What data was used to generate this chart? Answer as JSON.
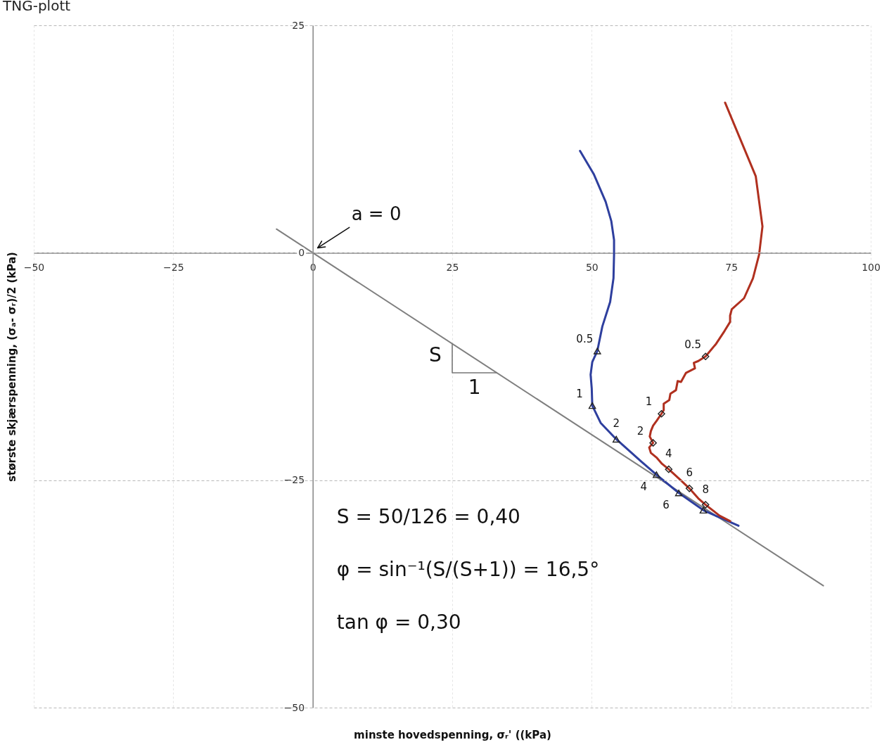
{
  "chart_data": {
    "type": "line",
    "title": "TNG-plott",
    "xlabel": "minste hovedspenning, σᵣ' ((kPa)",
    "ylabel": "største skjærspenning, (σₐ- σᵣ)/2 (kPa)",
    "xlim": [
      -50,
      100
    ],
    "ylim": [
      -50,
      25
    ],
    "xticks": [
      -50,
      -25,
      0,
      25,
      50,
      75,
      100
    ],
    "yticks": [
      -50,
      -25,
      0,
      25
    ],
    "grid": true,
    "series": [
      {
        "type": "line",
        "color": "#7f7f7f",
        "x": [
          -6.5,
          91.5
        ],
        "values": [
          2.6,
          -36.6
        ]
      },
      {
        "type": "line",
        "color": "#2e3f9e",
        "x": [
          47.9,
          50.4,
          52.5,
          53.5,
          54.0,
          54.0,
          53.9,
          53.3,
          51.9,
          51.0,
          50.1,
          49.8,
          50.0,
          50.1,
          51.6,
          54.4,
          58.8,
          61.6,
          65.6,
          70.0,
          72.9,
          76.3
        ],
        "values": [
          11.2,
          8.6,
          5.6,
          3.5,
          1.4,
          -0.2,
          -2.8,
          -5.4,
          -8.1,
          -10.8,
          -12.0,
          -13.4,
          -14.9,
          -16.8,
          -18.7,
          -20.5,
          -22.9,
          -24.4,
          -26.4,
          -28.3,
          -29.1,
          -30.0
        ]
      },
      {
        "type": "line",
        "color": "#b0301f",
        "x": [
          73.9,
          79.4,
          80.6,
          80.0,
          78.9,
          77.3,
          75.1,
          74.8,
          74.8,
          73.8,
          72.3,
          70.4,
          69.1,
          68.3,
          68.5,
          66.9,
          66.0,
          65.4,
          65.1,
          64.1,
          63.9,
          62.9,
          62.9,
          62.5,
          61.6,
          61.0,
          60.6,
          60.4,
          61.0,
          60.3,
          60.6,
          61.6,
          62.6,
          63.8,
          65.6,
          67.5,
          69.1,
          70.4,
          72.9,
          74.8
        ],
        "values": [
          16.5,
          8.4,
          2.9,
          -0.2,
          -2.8,
          -5.0,
          -6.2,
          -6.9,
          -7.6,
          -8.6,
          -10.0,
          -11.4,
          -11.9,
          -12.1,
          -12.7,
          -13.2,
          -14.2,
          -14.1,
          -15.1,
          -15.5,
          -16.2,
          -16.6,
          -17.3,
          -17.7,
          -18.5,
          -19.0,
          -19.6,
          -20.2,
          -20.9,
          -21.4,
          -22.0,
          -22.5,
          -23.2,
          -23.8,
          -24.8,
          -25.9,
          -27.0,
          -27.7,
          -28.9,
          -29.5
        ]
      },
      {
        "type": "scatter",
        "marker": "triangle",
        "color": "#222222",
        "x": [
          51.0,
          50.1,
          54.4,
          61.6,
          65.6,
          70.0
        ],
        "values": [
          -10.8,
          -16.8,
          -20.5,
          -24.4,
          -26.4,
          -28.3
        ]
      },
      {
        "type": "scatter",
        "marker": "diamond",
        "color": "#222222",
        "x": [
          70.4,
          62.5,
          61.0,
          63.8,
          67.5,
          70.4
        ],
        "values": [
          -11.4,
          -17.7,
          -20.9,
          -23.8,
          -25.9,
          -27.7
        ]
      }
    ],
    "annotations": [
      {
        "text": "a = 0",
        "x": 0,
        "y": 0
      },
      {
        "text": "S",
        "x": 25,
        "y": -10
      },
      {
        "text": "1",
        "x": 33,
        "y": -13.2
      },
      {
        "text": "0.5",
        "x": 51.0,
        "y": -10.8
      },
      {
        "text": "1",
        "x": 50.1,
        "y": -16.8
      },
      {
        "text": "2",
        "x": 54.4,
        "y": -20.5
      },
      {
        "text": "4",
        "x": 61.6,
        "y": -24.4
      },
      {
        "text": "6",
        "x": 65.6,
        "y": -26.4
      },
      {
        "text": "0.5",
        "x": 70.4,
        "y": -11.4
      },
      {
        "text": "1",
        "x": 62.5,
        "y": -17.7
      },
      {
        "text": "2",
        "x": 61.0,
        "y": -20.9
      },
      {
        "text": "4",
        "x": 63.8,
        "y": -23.8
      },
      {
        "text": "6",
        "x": 67.5,
        "y": -25.9
      },
      {
        "text": "8",
        "x": 70.4,
        "y": -27.7
      },
      "S = 50/126 = 0,40",
      "φ = sin⁻¹(S/(S+1)) = 16,5°",
      "tan φ = 0,30"
    ]
  }
}
